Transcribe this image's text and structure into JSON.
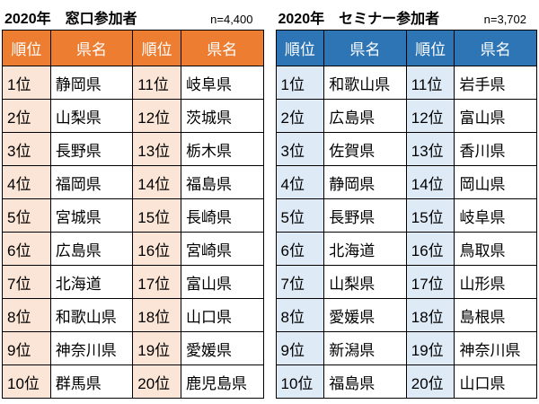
{
  "tables": [
    {
      "title": "2020年　窓口参加者",
      "n_label": "n=4,400",
      "columns": [
        "順位",
        "県名",
        "順位",
        "県名"
      ],
      "theme": {
        "header_bg": "#ED7D31",
        "header_text": "#FFFFFF",
        "rank_bg": "#FBE5D6",
        "border": "#000000"
      },
      "rows": [
        [
          "1位",
          "静岡県",
          "11位",
          "岐阜県"
        ],
        [
          "2位",
          "山梨県",
          "12位",
          "茨城県"
        ],
        [
          "3位",
          "長野県",
          "13位",
          "栃木県"
        ],
        [
          "4位",
          "福岡県",
          "14位",
          "福島県"
        ],
        [
          "5位",
          "宮城県",
          "15位",
          "長崎県"
        ],
        [
          "6位",
          "広島県",
          "16位",
          "宮崎県"
        ],
        [
          "7位",
          "北海道",
          "17位",
          "富山県"
        ],
        [
          "8位",
          "和歌山県",
          "18位",
          "山口県"
        ],
        [
          "9位",
          "神奈川県",
          "19位",
          "愛媛県"
        ],
        [
          "10位",
          "群馬県",
          "20位",
          "鹿児島県"
        ]
      ]
    },
    {
      "title": "2020年　セミナー参加者",
      "n_label": "n=3,702",
      "columns": [
        "順位",
        "県名",
        "順位",
        "県名"
      ],
      "theme": {
        "header_bg": "#2E75B6",
        "header_text": "#FFFFFF",
        "rank_bg": "#DEEAF6",
        "border": "#000000"
      },
      "rows": [
        [
          "1位",
          "和歌山県",
          "11位",
          "岩手県"
        ],
        [
          "2位",
          "広島県",
          "12位",
          "富山県"
        ],
        [
          "3位",
          "佐賀県",
          "13位",
          "香川県"
        ],
        [
          "4位",
          "静岡県",
          "14位",
          "岡山県"
        ],
        [
          "5位",
          "長野県",
          "15位",
          "岐阜県"
        ],
        [
          "6位",
          "北海道",
          "16位",
          "鳥取県"
        ],
        [
          "7位",
          "山梨県",
          "17位",
          "山形県"
        ],
        [
          "8位",
          "愛媛県",
          "18位",
          "島根県"
        ],
        [
          "9位",
          "新潟県",
          "19位",
          "神奈川県"
        ],
        [
          "10位",
          "福島県",
          "20位",
          "山口県"
        ]
      ]
    }
  ]
}
